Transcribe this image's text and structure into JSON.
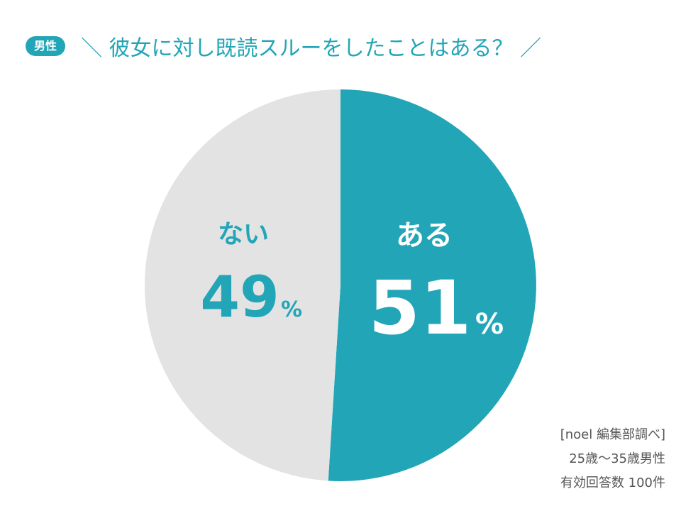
{
  "header": {
    "badge": "男性",
    "title": "＼ 彼女に対し既読スルーをしたことはある？ ／"
  },
  "colors": {
    "accent": "#22a6b7",
    "slice_no": "#e3e3e3",
    "slice_yes": "#22a6b7",
    "label_on_accent": "#ffffff",
    "label_on_gray": "#22a6b7"
  },
  "chart_data": {
    "type": "pie",
    "title": "＼ 彼女に対し既読スルーをしたことはある？ ／",
    "unit": "%",
    "slices": [
      {
        "label": "ある",
        "value": 51,
        "display": "51"
      },
      {
        "label": "ない",
        "value": 49,
        "display": "49"
      }
    ]
  },
  "source": {
    "line1": "[noel 編集部調べ]",
    "line2": "25歳〜35歳男性",
    "line3": "有効回答数 100件"
  }
}
